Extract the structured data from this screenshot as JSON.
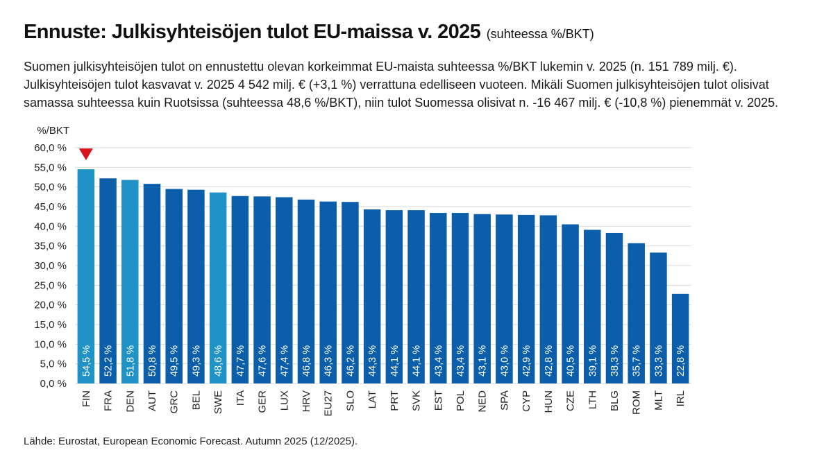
{
  "header": {
    "title": "Ennuste: Julkisyhteisöjen tulot EU-maissa v. 2025",
    "subtitle": "(suhteessa %/BKT)"
  },
  "description": {
    "lines": [
      "Suomen julkisyhteisöjen tulot on ennustettu olevan korkeimmat EU-maista suhteessa %/BKT lukemin v. 2025 (n. 151 789 milj. €).",
      "Julkisyhteisöjen tulot kasvavat v. 2025 4 542 milj. € (+3,1 %) verrattuna edelliseen vuoteen. Mikäli Suomen julkisyhteisöjen tulot olisivat",
      "samassa suhteessa kuin Ruotsissa (suhteessa 48,6 %/BKT), niin tulot Suomessa olisivat n. -16 467 milj. € (-10,8 %) pienemmät v. 2025."
    ]
  },
  "source": "Lähde: Eurostat, European Economic Forecast. Autumn 2025 (12/2025).",
  "colors": {
    "bar_default": "#0b5faa",
    "bar_highlight": "#1f93c6",
    "marker": "#d9121e",
    "grid": "#d9d9d9"
  },
  "chart_data": {
    "type": "bar",
    "title": "Ennuste: Julkisyhteisöjen tulot EU-maissa v. 2025",
    "ylabel": "%/BKT",
    "xlabel": "",
    "ylim": [
      0,
      60
    ],
    "ytick_step": 5,
    "ytick_labels": [
      "0,0 %",
      "5,0 %",
      "10,0 %",
      "15,0 %",
      "20,0 %",
      "25,0 %",
      "30,0 %",
      "35,0 %",
      "40,0 %",
      "45,0 %",
      "50,0 %",
      "55,0 %",
      "60,0 %"
    ],
    "grid": true,
    "categories": [
      "FIN",
      "FRA",
      "DEN",
      "AUT",
      "GRC",
      "BEL",
      "SWE",
      "ITA",
      "GER",
      "LUX",
      "HRV",
      "EU27",
      "SLO",
      "LAT",
      "PRT",
      "SVK",
      "EST",
      "POL",
      "NED",
      "SPA",
      "CYP",
      "HUN",
      "CZE",
      "LTH",
      "BLG",
      "ROM",
      "MLT",
      "IRL"
    ],
    "values": [
      54.5,
      52.2,
      51.8,
      50.8,
      49.5,
      49.3,
      48.6,
      47.7,
      47.6,
      47.4,
      46.8,
      46.3,
      46.2,
      44.3,
      44.1,
      44.1,
      43.4,
      43.4,
      43.1,
      43.0,
      42.9,
      42.8,
      40.5,
      39.1,
      38.3,
      35.7,
      33.3,
      22.8
    ],
    "value_labels": [
      "54,5 %",
      "52,2 %",
      "51,8 %",
      "50,8 %",
      "49,5 %",
      "49,3 %",
      "48,6 %",
      "47,7 %",
      "47,6 %",
      "47,4 %",
      "46,8 %",
      "46,3 %",
      "46,2 %",
      "44,3 %",
      "44,1 %",
      "44,1 %",
      "43,4 %",
      "43,4 %",
      "43,1 %",
      "43,0 %",
      "42,9 %",
      "42,8 %",
      "40,5 %",
      "39,1 %",
      "38,3 %",
      "35,7 %",
      "33,3 %",
      "22,8 %"
    ],
    "highlighted": [
      "FIN",
      "DEN",
      "SWE"
    ],
    "marker_on": "FIN"
  }
}
